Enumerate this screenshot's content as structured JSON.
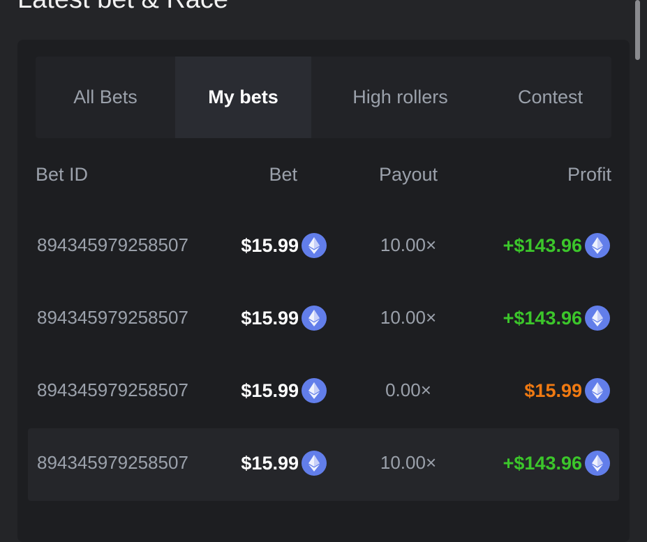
{
  "title": "Latest bet & Race",
  "tabs": [
    {
      "label": "All Bets",
      "active": false
    },
    {
      "label": "My bets",
      "active": true
    },
    {
      "label": "High rollers",
      "active": false
    },
    {
      "label": "Contest",
      "active": false
    }
  ],
  "columns": {
    "bet_id": "Bet ID",
    "bet": "Bet",
    "payout": "Payout",
    "profit": "Profit"
  },
  "colors": {
    "win": "#3cc62b",
    "loss": "#f07a12",
    "coin": "#627eea"
  },
  "rows": [
    {
      "bet_id": "894345979258507",
      "bet": "$15.99",
      "payout": "10.00×",
      "profit": "+$143.96",
      "result": "win",
      "coin_icon": "ethereum-icon"
    },
    {
      "bet_id": "894345979258507",
      "bet": "$15.99",
      "payout": "10.00×",
      "profit": "+$143.96",
      "result": "win",
      "coin_icon": "ethereum-icon"
    },
    {
      "bet_id": "894345979258507",
      "bet": "$15.99",
      "payout": "0.00×",
      "profit": "$15.99",
      "result": "loss",
      "coin_icon": "ethereum-icon"
    },
    {
      "bet_id": "894345979258507",
      "bet": "$15.99",
      "payout": "10.00×",
      "profit": "+$143.96",
      "result": "win",
      "coin_icon": "ethereum-icon"
    }
  ]
}
